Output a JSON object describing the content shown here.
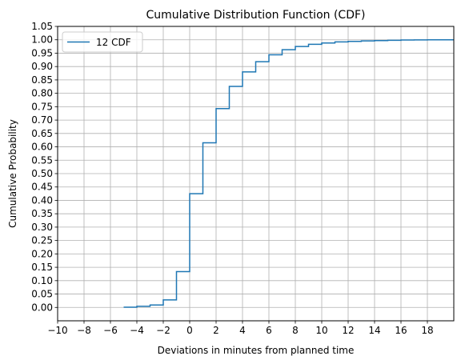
{
  "chart_data": {
    "type": "line",
    "step": true,
    "title": "Cumulative Distribution Function (CDF)",
    "xlabel": "Deviations in minutes from planned time",
    "ylabel": "Cumulative Probability",
    "xlim": [
      -10,
      20
    ],
    "ylim": [
      -0.05,
      1.05
    ],
    "xticks": [
      -10,
      -8,
      -6,
      -4,
      -2,
      0,
      2,
      4,
      6,
      8,
      10,
      12,
      14,
      16,
      18
    ],
    "xtick_labels": [
      "−10",
      "−8",
      "−6",
      "−4",
      "−2",
      "0",
      "2",
      "4",
      "6",
      "8",
      "10",
      "12",
      "14",
      "16",
      "18"
    ],
    "yticks": [
      0.0,
      0.05,
      0.1,
      0.15,
      0.2,
      0.25,
      0.3,
      0.35,
      0.4,
      0.45,
      0.5,
      0.55,
      0.6,
      0.65,
      0.7,
      0.75,
      0.8,
      0.85,
      0.9,
      0.95,
      1.0,
      1.05
    ],
    "ytick_labels": [
      "0.00",
      "0.05",
      "0.10",
      "0.15",
      "0.20",
      "0.25",
      "0.30",
      "0.35",
      "0.40",
      "0.45",
      "0.50",
      "0.55",
      "0.60",
      "0.65",
      "0.70",
      "0.75",
      "0.80",
      "0.85",
      "0.90",
      "0.95",
      "1.00",
      "1.05"
    ],
    "grid": true,
    "legend_position": "top-left",
    "series": [
      {
        "name": "12 CDF",
        "color": "#1f77b4",
        "x": [
          -5,
          -4,
          -3,
          -2,
          -1,
          0,
          1,
          2,
          3,
          4,
          5,
          6,
          7,
          8,
          9,
          10,
          11,
          12,
          13,
          14,
          15,
          16,
          17,
          18,
          19,
          20
        ],
        "y": [
          0.001,
          0.004,
          0.009,
          0.028,
          0.134,
          0.425,
          0.615,
          0.743,
          0.826,
          0.88,
          0.918,
          0.944,
          0.963,
          0.975,
          0.983,
          0.988,
          0.992,
          0.994,
          0.996,
          0.997,
          0.998,
          0.999,
          0.9995,
          1.0,
          1.0,
          1.0
        ]
      }
    ]
  }
}
